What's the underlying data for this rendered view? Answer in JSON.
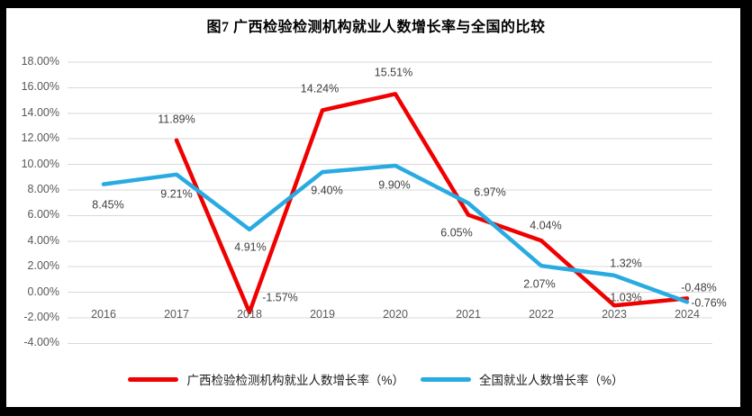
{
  "title": "图7 广西检验检测机构就业人数增长率与全国的比较",
  "chart_data": {
    "type": "line",
    "title": "图7 广西检验检测机构就业人数增长率与全国的比较",
    "categories": [
      "2016",
      "2017",
      "2018",
      "2019",
      "2020",
      "2021",
      "2022",
      "2023",
      "2024"
    ],
    "series": [
      {
        "name": "广西检验检测机构就业人数增长率（%）",
        "color": "#f00000",
        "start_index": 1,
        "values": [
          11.89,
          -1.57,
          14.24,
          15.51,
          6.05,
          4.04,
          -1.03,
          -0.48
        ],
        "point_labels": [
          "11.89%",
          "-1.57%",
          "14.24%",
          "15.51%",
          "6.05%",
          "4.04%",
          "-1.03%",
          "-0.48%"
        ],
        "label_offsets": [
          [
            0,
            -23
          ],
          [
            34,
            -16
          ],
          [
            -3,
            -23
          ],
          [
            -2,
            -23
          ],
          [
            -13,
            20
          ],
          [
            5,
            -16
          ],
          [
            11,
            -8
          ],
          [
            13,
            -11
          ]
        ]
      },
      {
        "name": "全国就业人数增长率（%）",
        "color": "#29abe2",
        "start_index": 0,
        "values": [
          8.45,
          9.21,
          4.91,
          9.4,
          9.9,
          6.97,
          2.07,
          1.32,
          -0.76
        ],
        "point_labels": [
          "8.45%",
          "9.21%",
          "4.91%",
          "9.40%",
          "9.90%",
          "6.97%",
          "2.07%",
          "1.32%",
          "-0.76%"
        ],
        "label_offsets": [
          [
            5,
            23
          ],
          [
            0,
            22
          ],
          [
            1,
            20
          ],
          [
            5,
            21
          ],
          [
            -1,
            22
          ],
          [
            24,
            -12
          ],
          [
            -2,
            21
          ],
          [
            13,
            -13
          ],
          [
            24,
            2
          ]
        ]
      }
    ],
    "y_ticks": [
      "18.00%",
      "16.00%",
      "14.00%",
      "12.00%",
      "10.00%",
      "8.00%",
      "6.00%",
      "4.00%",
      "2.00%",
      "0.00%",
      "-2.00%",
      "-4.00%"
    ],
    "y_axis": {
      "min": -4,
      "max": 18,
      "step": 2
    },
    "grid": true,
    "legend_position": "bottom"
  },
  "colors": {
    "grid_line": "#d9d9d9",
    "axis_text": "#595959",
    "data_label_text": "#3f3f3f",
    "frame": "#000000"
  }
}
